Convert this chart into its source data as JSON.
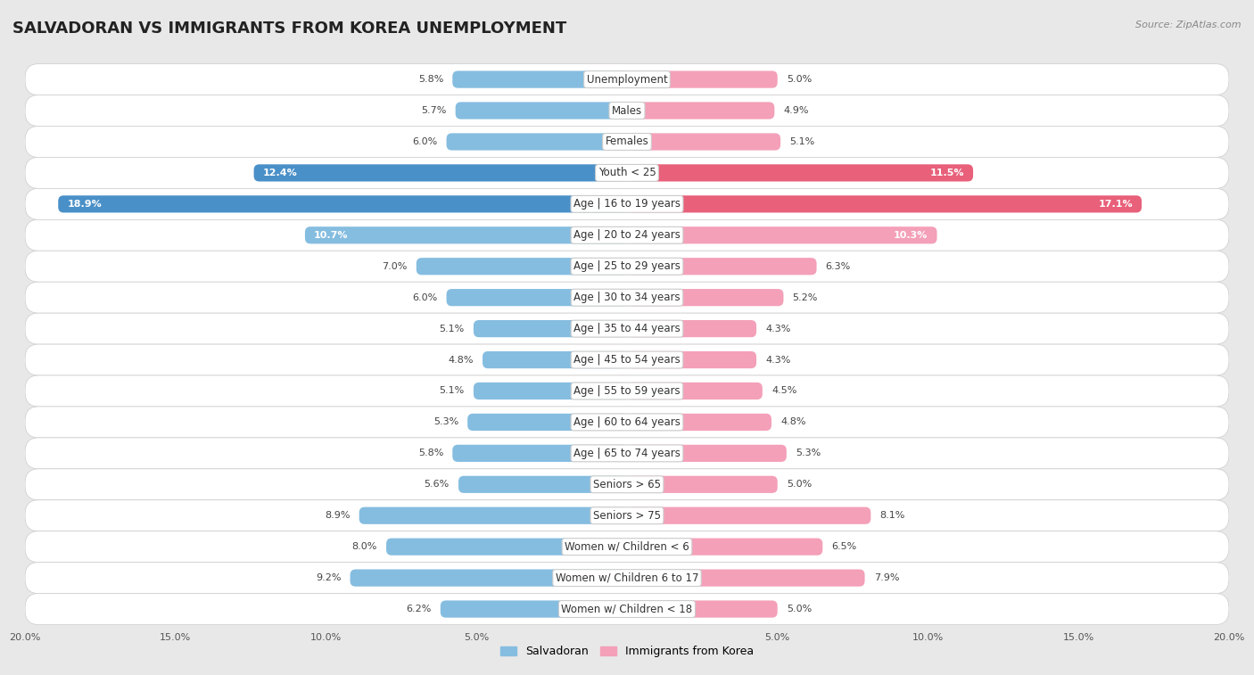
{
  "title": "SALVADORAN VS IMMIGRANTS FROM KOREA UNEMPLOYMENT",
  "source": "Source: ZipAtlas.com",
  "categories": [
    "Unemployment",
    "Males",
    "Females",
    "Youth < 25",
    "Age | 16 to 19 years",
    "Age | 20 to 24 years",
    "Age | 25 to 29 years",
    "Age | 30 to 34 years",
    "Age | 35 to 44 years",
    "Age | 45 to 54 years",
    "Age | 55 to 59 years",
    "Age | 60 to 64 years",
    "Age | 65 to 74 years",
    "Seniors > 65",
    "Seniors > 75",
    "Women w/ Children < 6",
    "Women w/ Children 6 to 17",
    "Women w/ Children < 18"
  ],
  "salvadoran": [
    5.8,
    5.7,
    6.0,
    12.4,
    18.9,
    10.7,
    7.0,
    6.0,
    5.1,
    4.8,
    5.1,
    5.3,
    5.8,
    5.6,
    8.9,
    8.0,
    9.2,
    6.2
  ],
  "korea": [
    5.0,
    4.9,
    5.1,
    11.5,
    17.1,
    10.3,
    6.3,
    5.2,
    4.3,
    4.3,
    4.5,
    4.8,
    5.3,
    5.0,
    8.1,
    6.5,
    7.9,
    5.0
  ],
  "salvadoran_color": "#85bde0",
  "korea_color": "#f4a0b8",
  "salvadoran_highlight_color": "#4a90c8",
  "korea_highlight_color": "#e8607a",
  "axis_max": 20.0,
  "bar_height": 0.55,
  "title_fontsize": 13,
  "label_fontsize": 8.5,
  "value_fontsize": 8,
  "legend_fontsize": 9,
  "highlight_indices": [
    3,
    4
  ]
}
